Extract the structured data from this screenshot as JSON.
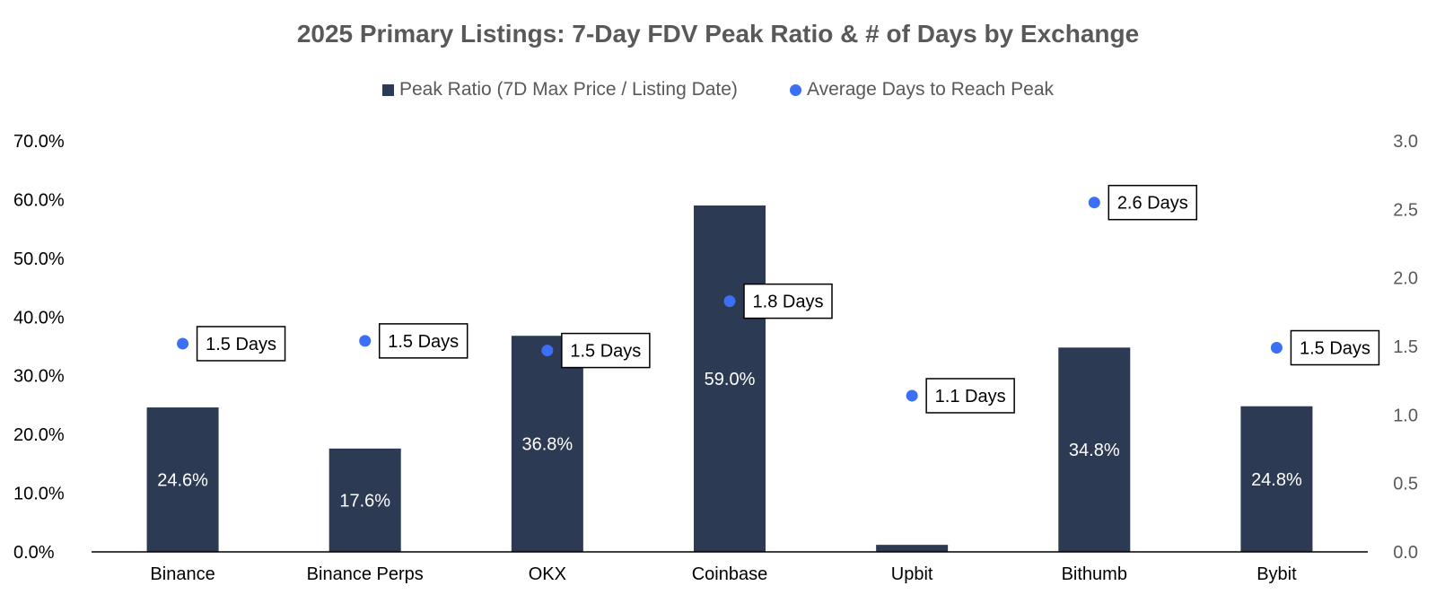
{
  "chart_data": {
    "type": "bar",
    "title": "2025 Primary Listings: 7-Day FDV Peak Ratio & # of Days by Exchange",
    "categories": [
      "Binance",
      "Binance Perps",
      "OKX",
      "Coinbase",
      "Upbit",
      "Bithumb",
      "Bybit"
    ],
    "series": [
      {
        "name": "Peak Ratio (7D Max Price / Listing Date)",
        "type": "bar",
        "axis": "left",
        "values": [
          24.6,
          17.6,
          36.8,
          59.0,
          1.2,
          34.8,
          24.8
        ],
        "labels": [
          "24.6%",
          "17.6%",
          "36.8%",
          "59.0%",
          "",
          "34.8%",
          "24.8%"
        ]
      },
      {
        "name": "Average Days to Reach Peak",
        "type": "scatter",
        "axis": "right",
        "values": [
          1.52,
          1.54,
          1.47,
          1.83,
          1.14,
          2.55,
          1.49
        ],
        "labels": [
          "1.5 Days",
          "1.5 Days",
          "1.5 Days",
          "1.8 Days",
          "1.1 Days",
          "2.6 Days",
          "1.5 Days"
        ]
      }
    ],
    "y_left": {
      "lim": [
        0,
        70
      ],
      "ticks": [
        "0.0%",
        "10.0%",
        "20.0%",
        "30.0%",
        "40.0%",
        "50.0%",
        "60.0%",
        "70.0%"
      ]
    },
    "y_right": {
      "lim": [
        0,
        3
      ],
      "ticks": [
        "0.0",
        "0.5",
        "1.0",
        "1.5",
        "2.0",
        "2.5",
        "3.0"
      ]
    },
    "grid": false,
    "legend_position": "top-center",
    "colors": {
      "bar": "#2d3a53",
      "dot": "#3b6ff5",
      "text": "#595959",
      "axis": "#000000"
    }
  }
}
